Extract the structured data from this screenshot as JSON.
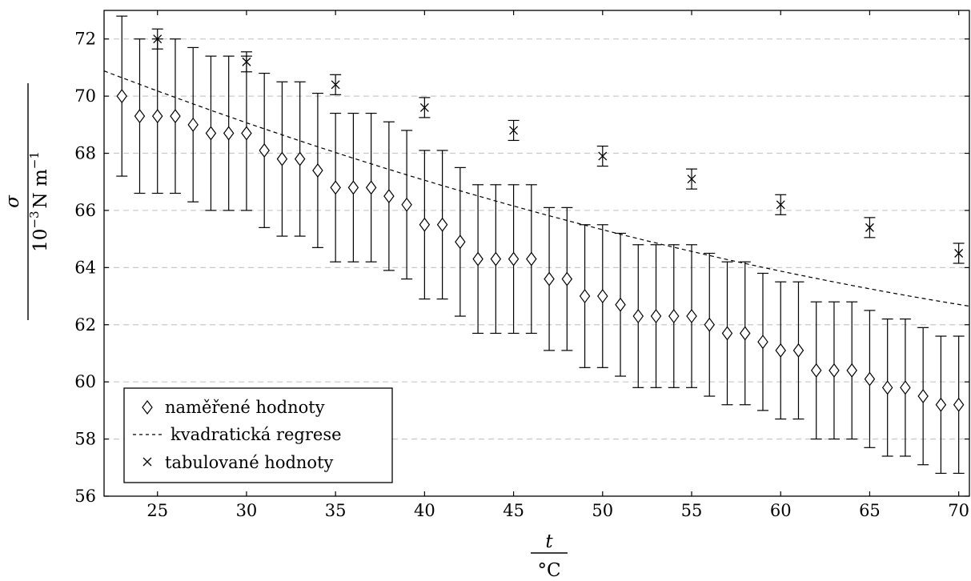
{
  "chart_data": {
    "type": "scatter",
    "x": {
      "label_symbol": "t",
      "label_unit": "°C",
      "lim": [
        22,
        70.6
      ],
      "ticks": [
        25,
        30,
        35,
        40,
        45,
        50,
        55,
        60,
        65,
        70
      ]
    },
    "y": {
      "label_symbol": "σ",
      "label_unit_base": "10",
      "label_unit_exp": "−3",
      "label_unit_rest": "N m",
      "label_unit_exp2": "−1",
      "lim": [
        56,
        73
      ],
      "ticks": [
        56,
        58,
        60,
        62,
        64,
        66,
        68,
        70,
        72
      ]
    },
    "grid": "horizontal-dashed",
    "legend_position": "bottom-left",
    "series": [
      {
        "name": "naměřené hodnoty",
        "marker": "diamond",
        "x": [
          23,
          24,
          25,
          26,
          27,
          28,
          29,
          30,
          31,
          32,
          33,
          34,
          35,
          36,
          37,
          38,
          39,
          40,
          41,
          42,
          43,
          44,
          45,
          46,
          47,
          48,
          49,
          50,
          51,
          52,
          53,
          54,
          55,
          56,
          57,
          58,
          59,
          60,
          61,
          62,
          63,
          64,
          65,
          66,
          67,
          68,
          69,
          70
        ],
        "y": [
          70.0,
          69.3,
          69.3,
          69.3,
          69.0,
          68.7,
          68.7,
          68.7,
          68.1,
          67.8,
          67.8,
          67.4,
          66.8,
          66.8,
          66.8,
          66.5,
          66.2,
          65.5,
          65.5,
          64.9,
          64.3,
          64.3,
          64.3,
          64.3,
          63.6,
          63.6,
          63.0,
          63.0,
          62.7,
          62.3,
          62.3,
          62.3,
          62.3,
          62.0,
          61.7,
          61.7,
          61.4,
          61.1,
          61.1,
          60.4,
          60.4,
          60.4,
          60.1,
          59.8,
          59.8,
          59.5,
          59.2,
          59.2
        ],
        "error": [
          2.8,
          2.7,
          2.7,
          2.7,
          2.7,
          2.7,
          2.7,
          2.7,
          2.7,
          2.7,
          2.7,
          2.7,
          2.6,
          2.6,
          2.6,
          2.6,
          2.6,
          2.6,
          2.6,
          2.6,
          2.6,
          2.6,
          2.6,
          2.6,
          2.5,
          2.5,
          2.5,
          2.5,
          2.5,
          2.5,
          2.5,
          2.5,
          2.5,
          2.5,
          2.5,
          2.5,
          2.4,
          2.4,
          2.4,
          2.4,
          2.4,
          2.4,
          2.4,
          2.4,
          2.4,
          2.4,
          2.4,
          2.4
        ]
      },
      {
        "name": "kvadratická regrese",
        "marker": "dashed-line",
        "fit": {
          "form": "a + b*t + c*t^2",
          "a": 76.8,
          "b": -0.3,
          "c": 0.00141
        }
      },
      {
        "name": "tabulované hodnoty",
        "marker": "cross",
        "x": [
          25,
          30,
          35,
          40,
          45,
          50,
          55,
          60,
          65,
          70
        ],
        "y": [
          72.0,
          71.2,
          70.4,
          69.6,
          68.8,
          67.9,
          67.1,
          66.2,
          65.4,
          64.5
        ],
        "error": [
          0.35,
          0.35,
          0.35,
          0.35,
          0.35,
          0.35,
          0.35,
          0.35,
          0.35,
          0.35
        ]
      }
    ]
  }
}
